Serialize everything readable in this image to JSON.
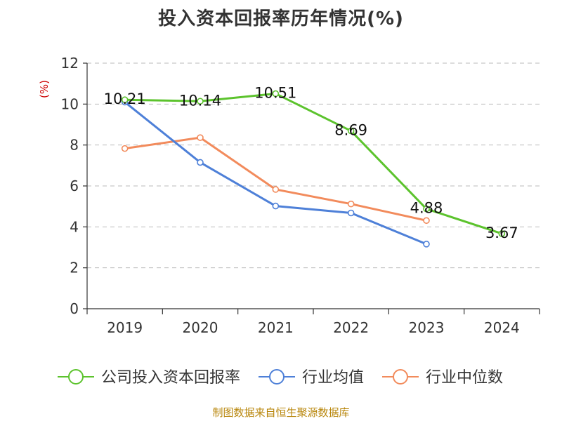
{
  "chart_data": {
    "type": "line",
    "title": "投入资本回报率历年情况(%)",
    "ylabel": "(%)",
    "xlabel": "",
    "categories": [
      "2019",
      "2020",
      "2021",
      "2022",
      "2023",
      "2024"
    ],
    "ylim": [
      0,
      12
    ],
    "yticks": [
      0,
      2,
      4,
      6,
      8,
      10,
      12
    ],
    "grid": "horizontal dashed",
    "legend_position": "bottom",
    "series": [
      {
        "name": "公司投入资本回报率",
        "color": "#5cc32d",
        "values": [
          10.21,
          10.14,
          10.51,
          8.69,
          4.88,
          3.67
        ],
        "labels": [
          "10.21",
          "10.14",
          "10.51",
          "8.69",
          "4.88",
          "3.67"
        ]
      },
      {
        "name": "行业均值",
        "color": "#4e80d8",
        "values": [
          10.1,
          7.15,
          5.02,
          4.68,
          3.16,
          null
        ]
      },
      {
        "name": "行业中位数",
        "color": "#f28b5c",
        "values": [
          7.83,
          8.36,
          5.83,
          5.12,
          4.31,
          null
        ]
      }
    ]
  },
  "source": "制图数据来自恒生聚源数据库",
  "colors": {
    "axis": "#333333",
    "grid": "#bbbbbb",
    "ylabel": "#cc0000",
    "source": "#b8860b"
  }
}
